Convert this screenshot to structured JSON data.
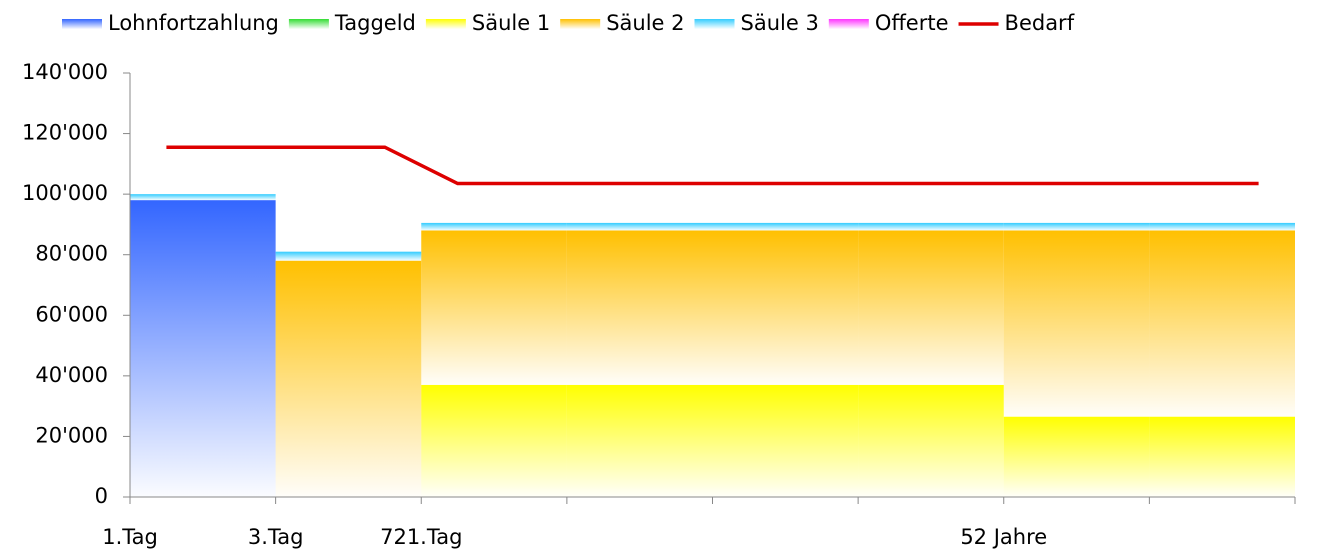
{
  "chart_data": {
    "type": "bar",
    "stacked": true,
    "categories": [
      "1.Tag",
      "3.Tag",
      "721.Tag",
      null,
      null,
      null,
      "52 Jahre",
      null
    ],
    "ylim": [
      0,
      140000
    ],
    "yticks": [
      0,
      {
        "value": 20000,
        "label": "20'000"
      },
      {
        "value": 40000,
        "label": "40'000"
      },
      {
        "value": 60000,
        "label": "60'000"
      },
      {
        "value": 80000,
        "label": "80'000"
      },
      {
        "value": 100000,
        "label": "100'000"
      },
      {
        "value": 120000,
        "label": "120'000"
      },
      {
        "value": 140000,
        "label": "140'000"
      }
    ],
    "series": [
      {
        "name": "Lohnfortzahlung",
        "color": "#3366ff",
        "values": [
          98000,
          0,
          0,
          0,
          0,
          0,
          0,
          0
        ]
      },
      {
        "name": "Taggeld",
        "color": "#33dd33",
        "values": [
          0,
          0,
          0,
          0,
          0,
          0,
          0,
          0
        ]
      },
      {
        "name": "Säule 1",
        "color": "#ffff00",
        "values": [
          0,
          0,
          37000,
          37000,
          37000,
          37000,
          26500,
          26500
        ]
      },
      {
        "name": "Säule 2",
        "color": "#ffc000",
        "values": [
          0,
          78000,
          51000,
          51000,
          51000,
          51000,
          61500,
          61500
        ]
      },
      {
        "name": "Säule 3",
        "color": "#33ccff",
        "values": [
          2000,
          3000,
          2500,
          2500,
          2500,
          2500,
          2500,
          2500
        ]
      },
      {
        "name": "Offerte",
        "color": "#ff33ff",
        "values": [
          0,
          0,
          0,
          0,
          0,
          0,
          0,
          0
        ]
      },
      {
        "name": "Bedarf",
        "color": "#dd0000",
        "type": "line",
        "x": [
          0.25,
          1.75,
          2.25,
          7.75
        ],
        "values": [
          115500,
          115500,
          103500,
          103500
        ]
      }
    ]
  }
}
